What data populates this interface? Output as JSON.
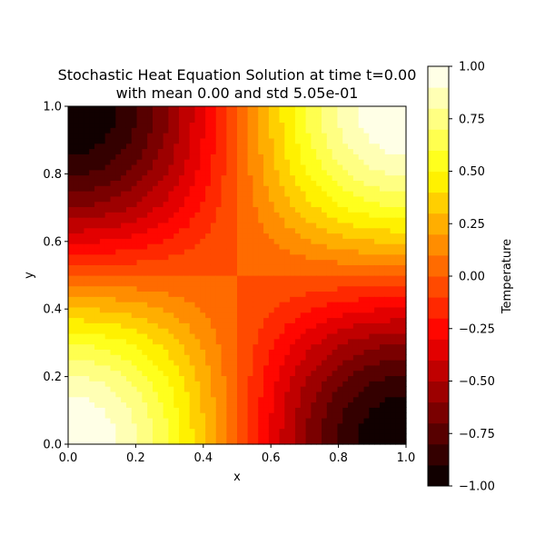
{
  "chart_data": {
    "type": "heatmap",
    "title_line1": "Stochastic Heat Equation Solution at time t=0.00",
    "title_line2": "with mean 0.00 and std 5.05e-01",
    "xlabel": "x",
    "ylabel": "y",
    "xlim": [
      0.0,
      1.0
    ],
    "ylim": [
      0.0,
      1.0
    ],
    "xticks": [
      "0.0",
      "0.2",
      "0.4",
      "0.6",
      "0.8",
      "1.0"
    ],
    "yticks": [
      "0.0",
      "0.2",
      "0.4",
      "0.6",
      "0.8",
      "1.0"
    ],
    "grid_resolution": 64,
    "field": "T(x,y) = cos(pi*x) * cos(pi*y)",
    "colormap": "hot",
    "color_levels": 20,
    "colorbar": {
      "label": "Temperature",
      "vmin": -1.0,
      "vmax": 1.0,
      "ticks": [
        "1.00",
        "0.75",
        "0.50",
        "0.25",
        "0.00",
        "−0.25",
        "−0.50",
        "−0.75",
        "−1.00"
      ]
    },
    "grid": false
  }
}
